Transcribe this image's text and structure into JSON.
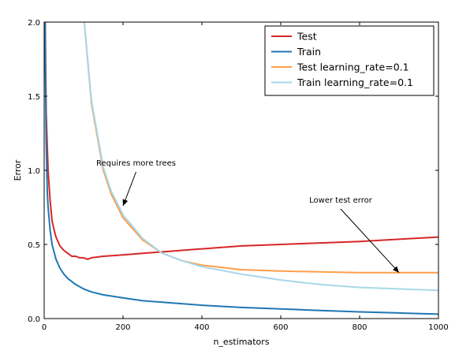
{
  "chart_data": {
    "type": "line",
    "title": "",
    "xlabel": "n_estimators",
    "ylabel": "Error",
    "xlim": [
      0,
      1000
    ],
    "ylim": [
      0,
      2.0
    ],
    "x_ticks": [
      "0",
      "200",
      "400",
      "600",
      "800",
      "1000"
    ],
    "y_ticks": [
      "0.0",
      "0.5",
      "1.0",
      "1.5",
      "2.0"
    ],
    "grid": false,
    "legend_position": "top-right",
    "series": [
      {
        "name": "Test",
        "color": "#d62728",
        "x": [
          1,
          3,
          5,
          8,
          10,
          15,
          20,
          25,
          30,
          40,
          50,
          60,
          70,
          80,
          90,
          100,
          110,
          120,
          150,
          200,
          250,
          300,
          400,
          500,
          600,
          700,
          800,
          900,
          1000
        ],
        "y": [
          2.6,
          1.9,
          1.4,
          1.15,
          1.0,
          0.8,
          0.66,
          0.6,
          0.55,
          0.49,
          0.46,
          0.44,
          0.42,
          0.42,
          0.41,
          0.41,
          0.4,
          0.41,
          0.42,
          0.43,
          0.44,
          0.45,
          0.47,
          0.49,
          0.5,
          0.51,
          0.52,
          0.535,
          0.55
        ]
      },
      {
        "name": "Train",
        "color": "#1f77b4",
        "x": [
          1,
          3,
          5,
          8,
          10,
          15,
          20,
          30,
          40,
          50,
          60,
          80,
          100,
          120,
          150,
          200,
          250,
          300,
          400,
          500,
          600,
          700,
          800,
          900,
          1000
        ],
        "y": [
          2.6,
          1.7,
          1.2,
          0.85,
          0.75,
          0.6,
          0.5,
          0.4,
          0.34,
          0.3,
          0.27,
          0.23,
          0.2,
          0.18,
          0.16,
          0.14,
          0.12,
          0.11,
          0.09,
          0.075,
          0.065,
          0.055,
          0.045,
          0.038,
          0.03
        ]
      },
      {
        "name": "Test learning_rate=0.1",
        "color": "#ff9e4a",
        "x": [
          90,
          100,
          120,
          150,
          170,
          200,
          250,
          300,
          350,
          400,
          500,
          600,
          700,
          800,
          900,
          1000
        ],
        "y": [
          2.6,
          2.05,
          1.45,
          1.0,
          0.84,
          0.68,
          0.53,
          0.44,
          0.39,
          0.36,
          0.33,
          0.32,
          0.315,
          0.31,
          0.31,
          0.31
        ]
      },
      {
        "name": "Train learning_rate=0.1",
        "color": "#a6d8ea",
        "x": [
          90,
          100,
          120,
          150,
          170,
          200,
          250,
          300,
          350,
          400,
          500,
          600,
          700,
          800,
          900,
          1000
        ],
        "y": [
          2.6,
          2.05,
          1.47,
          1.02,
          0.86,
          0.7,
          0.54,
          0.44,
          0.39,
          0.35,
          0.3,
          0.26,
          0.23,
          0.21,
          0.2,
          0.19
        ]
      }
    ],
    "annotations": [
      {
        "text": "Requires more trees",
        "point": [
          200,
          0.76
        ],
        "text_at": [
          233,
          1.0
        ]
      },
      {
        "text": "Lower test error",
        "point": [
          900,
          0.31
        ],
        "text_at": [
          752,
          0.75
        ]
      }
    ]
  }
}
